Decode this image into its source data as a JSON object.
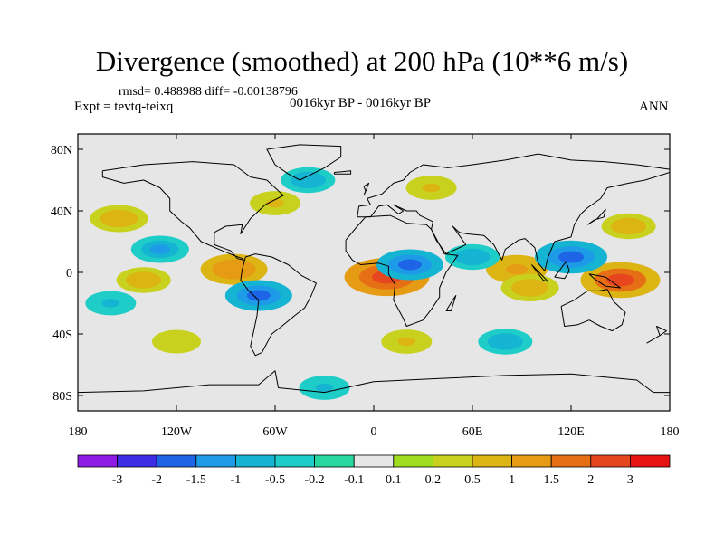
{
  "header": {
    "title": "Divergence (smoothed) at 200 hPa (10**6 m/s)",
    "stats": "rmsd= 0.488988 diff= -0.00138796",
    "experiment": "Expt = tevtq-teixq",
    "period": "0016kyr BP - 0016kyr BP",
    "season": "ANN"
  },
  "axes": {
    "lat_ticks": [
      {
        "lat": 80,
        "label": "80N"
      },
      {
        "lat": 40,
        "label": "40N"
      },
      {
        "lat": 0,
        "label": "0"
      },
      {
        "lat": -40,
        "label": "40S"
      },
      {
        "lat": -80,
        "label": "80S"
      }
    ],
    "lon_ticks": [
      {
        "lon": -180,
        "label": "180"
      },
      {
        "lon": -120,
        "label": "120W"
      },
      {
        "lon": -60,
        "label": "60W"
      },
      {
        "lon": 0,
        "label": "0"
      },
      {
        "lon": 60,
        "label": "60E"
      },
      {
        "lon": 120,
        "label": "120E"
      },
      {
        "lon": 180,
        "label": "180"
      }
    ],
    "lon_range": [
      -180,
      180
    ],
    "lat_range": [
      -90,
      90
    ]
  },
  "colorbar": {
    "colors": [
      "#8c1ce6",
      "#3c2ce6",
      "#1e64e6",
      "#1e9be6",
      "#14b4d2",
      "#1ecdc8",
      "#28d7a0",
      "#e6e6e6",
      "#a0dc1e",
      "#c8d21e",
      "#dcb414",
      "#e69b14",
      "#e66e14",
      "#e6461e",
      "#e61414"
    ],
    "labels": [
      "-3",
      "-2",
      "-1.5",
      "-1",
      "-0.5",
      "-0.2",
      "-0.1",
      "0.1",
      "0.2",
      "0.5",
      "1",
      "1.5",
      "2",
      "3"
    ]
  },
  "chart_data": {
    "type": "heatmap",
    "variable": "Divergence (smoothed) at 200 hPa",
    "units": "10**6 m/s",
    "levels": [
      -3,
      -2,
      -1.5,
      -1,
      -0.5,
      -0.2,
      -0.1,
      0.1,
      0.2,
      0.5,
      1,
      1.5,
      2,
      3
    ],
    "features": [
      {
        "lon": 8,
        "lat": -3,
        "value": 2.5
      },
      {
        "lon": 150,
        "lat": -5,
        "value": 2.2
      },
      {
        "lon": -85,
        "lat": 2,
        "value": 1.5
      },
      {
        "lon": 87,
        "lat": 2,
        "value": 1.2
      },
      {
        "lon": -155,
        "lat": 35,
        "value": 1.0
      },
      {
        "lon": -140,
        "lat": -5,
        "value": 0.8
      },
      {
        "lon": 20,
        "lat": -45,
        "value": 0.6
      },
      {
        "lon": 95,
        "lat": -10,
        "value": 1.0
      },
      {
        "lon": 155,
        "lat": 30,
        "value": 0.8
      },
      {
        "lon": -60,
        "lat": 45,
        "value": 0.6
      },
      {
        "lon": 35,
        "lat": 55,
        "value": 0.6
      },
      {
        "lon": -120,
        "lat": -45,
        "value": 0.5
      },
      {
        "lon": -70,
        "lat": -15,
        "value": -1.5
      },
      {
        "lon": 22,
        "lat": 5,
        "value": -1.5
      },
      {
        "lon": 120,
        "lat": 10,
        "value": -1.8
      },
      {
        "lon": -130,
        "lat": 15,
        "value": -1.0
      },
      {
        "lon": 60,
        "lat": 10,
        "value": -0.8
      },
      {
        "lon": -40,
        "lat": 60,
        "value": -0.8
      },
      {
        "lon": 80,
        "lat": -45,
        "value": -0.8
      },
      {
        "lon": -160,
        "lat": -20,
        "value": -0.6
      },
      {
        "lon": -30,
        "lat": -75,
        "value": -0.6
      }
    ]
  }
}
